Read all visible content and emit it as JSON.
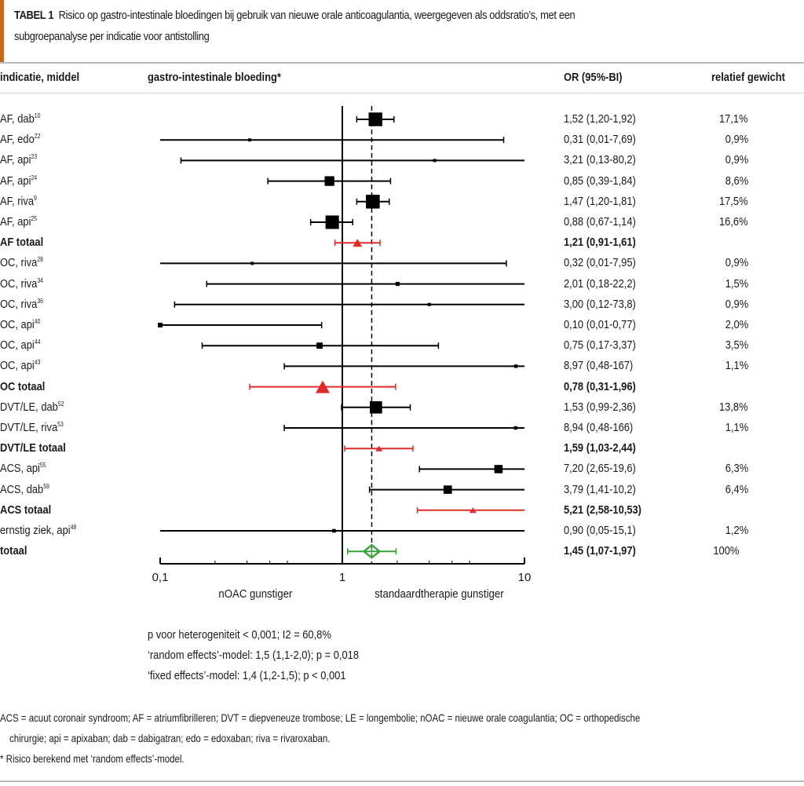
{
  "caption": {
    "label": "TABEL 1",
    "text": "Risico op gastro-intestinale bloedingen bij gebruik van nieuwe orale anticoagulantia, weergegeven als oddsratio’s, met een",
    "text2": "subgroepanalyse per indicatie voor antistolling"
  },
  "headers": {
    "label": "indicatie, middel",
    "plot": "gastro-intestinale bloeding*",
    "or": "OR (95%-BI)",
    "weight": "relatief gewicht"
  },
  "chart_data": {
    "type": "forest",
    "title": "gastro-intestinale bloeding*",
    "xscale": "log",
    "xlim": [
      0.1,
      10
    ],
    "xticks": [
      "0,1",
      "1",
      "10"
    ],
    "x_left_label": "nOAC gunstiger",
    "x_right_label": "standaardtherapie gunstiger",
    "reference_line": 1,
    "pooled_line": 1.45,
    "colors": {
      "study": "#000000",
      "subtotal": "#e02a2a",
      "total": "#3aa33a"
    },
    "rows": [
      {
        "label": "AF, dab",
        "ref": "10",
        "kind": "study",
        "or": 1.52,
        "lo": 1.2,
        "hi": 1.92,
        "or_text": "1,52 (1,20-1,92)",
        "weight": "17,1%",
        "w": 17.1
      },
      {
        "label": "AF, edo",
        "ref": "22",
        "kind": "study",
        "or": 0.31,
        "lo": 0.01,
        "hi": 7.69,
        "or_text": "0,31 (0,01-7,69)",
        "weight": "0,9%",
        "w": 0.9
      },
      {
        "label": "AF, api",
        "ref": "23",
        "kind": "study",
        "or": 3.21,
        "lo": 0.13,
        "hi": 80.2,
        "or_text": "3,21 (0,13-80,2)",
        "weight": "0,9%",
        "w": 0.9
      },
      {
        "label": "AF, api",
        "ref": "24",
        "kind": "study",
        "or": 0.85,
        "lo": 0.39,
        "hi": 1.84,
        "or_text": "0,85 (0,39-1,84)",
        "weight": "8,6%",
        "w": 8.6
      },
      {
        "label": "AF, riva",
        "ref": "9",
        "kind": "study",
        "or": 1.47,
        "lo": 1.2,
        "hi": 1.81,
        "or_text": "1,47 (1,20-1,81)",
        "weight": "17,5%",
        "w": 17.5
      },
      {
        "label": "AF, api",
        "ref": "25",
        "kind": "study",
        "or": 0.88,
        "lo": 0.67,
        "hi": 1.14,
        "or_text": "0,88 (0,67-1,14)",
        "weight": "16,6%",
        "w": 16.6
      },
      {
        "label": "AF totaal",
        "ref": "",
        "kind": "subtotal",
        "or": 1.21,
        "lo": 0.91,
        "hi": 1.61,
        "or_text": "1,21 (0,91-1,61)",
        "weight": "",
        "w": 3
      },
      {
        "label": "OC, riva",
        "ref": "28",
        "kind": "study",
        "or": 0.32,
        "lo": 0.01,
        "hi": 7.95,
        "or_text": "0,32 (0,01-7,95)",
        "weight": "0,9%",
        "w": 0.9
      },
      {
        "label": "OC, riva",
        "ref": "34",
        "kind": "study",
        "or": 2.01,
        "lo": 0.18,
        "hi": 22.2,
        "or_text": "2,01 (0,18-22,2)",
        "weight": "1,5%",
        "w": 1.5
      },
      {
        "label": "OC, riva",
        "ref": "36",
        "kind": "study",
        "or": 3.0,
        "lo": 0.12,
        "hi": 73.8,
        "or_text": "3,00 (0,12-73,8)",
        "weight": "0,9%",
        "w": 0.9
      },
      {
        "label": "OC, api",
        "ref": "40",
        "kind": "study",
        "or": 0.1,
        "lo": 0.01,
        "hi": 0.77,
        "or_text": "0,10 (0,01-0,77)",
        "weight": "2,0%",
        "w": 2.0
      },
      {
        "label": "OC, api",
        "ref": "44",
        "kind": "study",
        "or": 0.75,
        "lo": 0.17,
        "hi": 3.37,
        "or_text": "0,75 (0,17-3,37)",
        "weight": "3,5%",
        "w": 3.5
      },
      {
        "label": "OC, api",
        "ref": "43",
        "kind": "study",
        "or": 8.97,
        "lo": 0.48,
        "hi": 167,
        "or_text": "8,97 (0,48-167)",
        "weight": "1,1%",
        "w": 1.1
      },
      {
        "label": "OC totaal",
        "ref": "",
        "kind": "subtotal",
        "or": 0.78,
        "lo": 0.31,
        "hi": 1.96,
        "or_text": "0,78 (0,31-1,96)",
        "weight": "",
        "w": 6
      },
      {
        "label": "DVT/LE, dab",
        "ref": "52",
        "kind": "study",
        "or": 1.53,
        "lo": 0.99,
        "hi": 2.36,
        "or_text": "1,53 (0,99-2,36)",
        "weight": "13,8%",
        "w": 13.8
      },
      {
        "label": "DVT/LE, riva",
        "ref": "53",
        "kind": "study",
        "or": 8.94,
        "lo": 0.48,
        "hi": 166,
        "or_text": "8,94 (0,48-166)",
        "weight": "1,1%",
        "w": 1.1
      },
      {
        "label": "DVT/LE totaal",
        "ref": "",
        "kind": "subtotal",
        "or": 1.59,
        "lo": 1.03,
        "hi": 2.44,
        "or_text": "1,59 (1,03-2,44)",
        "weight": "",
        "w": 1.5
      },
      {
        "label": "ACS, api",
        "ref": "55",
        "kind": "study",
        "or": 7.2,
        "lo": 2.65,
        "hi": 19.6,
        "or_text": "7,20 (2,65-19,6)",
        "weight": "6,3%",
        "w": 6.3
      },
      {
        "label": "ACS, dab",
        "ref": "59",
        "kind": "study",
        "or": 3.79,
        "lo": 1.41,
        "hi": 10.2,
        "or_text": "3,79 (1,41-10,2)",
        "weight": "6,4%",
        "w": 6.4
      },
      {
        "label": "ACS totaal",
        "ref": "",
        "kind": "subtotal",
        "or": 5.21,
        "lo": 2.58,
        "hi": 10.53,
        "or_text": "5,21 (2,58-10,53)",
        "weight": "",
        "w": 1.5
      },
      {
        "label": "ernstig ziek, api",
        "ref": "48",
        "kind": "study",
        "or": 0.9,
        "lo": 0.05,
        "hi": 15.1,
        "or_text": "0,90 (0,05-15,1)",
        "weight": "1,2%",
        "w": 1.2
      },
      {
        "label": "totaal",
        "ref": "",
        "kind": "total",
        "or": 1.45,
        "lo": 1.07,
        "hi": 1.97,
        "or_text": "1,45 (1,07-1,97)",
        "weight": "100%",
        "w": 10
      }
    ]
  },
  "notes": [
    "p voor heterogeniteit < 0,001; I2 = 60,8%",
    "‘random effects’-model: 1,5 (1,1-2,0); p = 0,018",
    "‘fixed effects’-model: 1,4 (1,2-1,5); p < 0,001"
  ],
  "footnotes": [
    "ACS = acuut coronair syndroom; AF = atriumfibrilleren; DVT = diepveneuze trombose; LE = longembolie; nOAC = nieuwe orale coagulantia; OC = orthopedische",
    "chirurgie; api = apixaban; dab = dabigatran; edo = edoxaban; riva = rivaroxaban.",
    "* Risico berekend met ‘random effects’-model."
  ]
}
